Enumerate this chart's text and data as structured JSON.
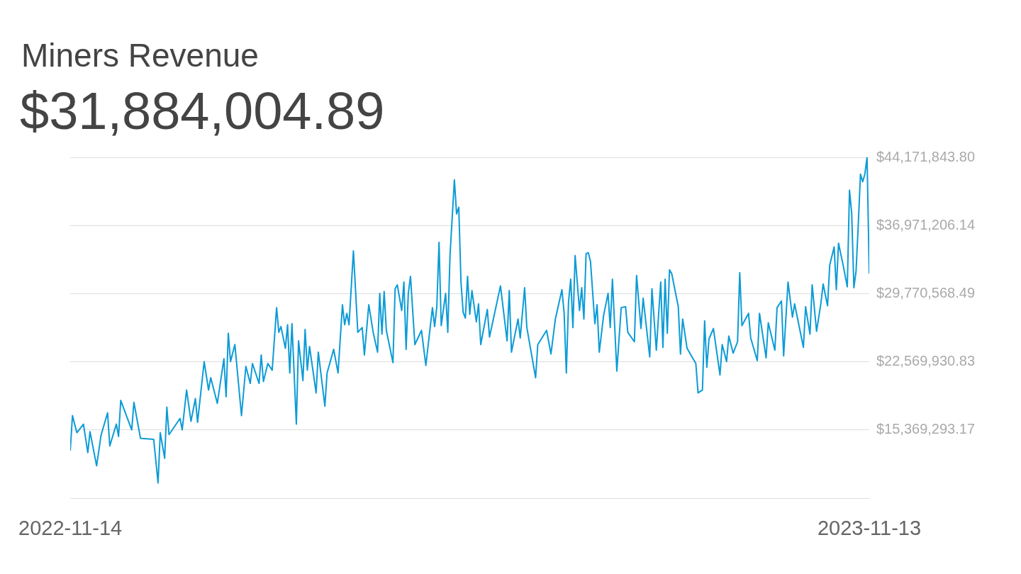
{
  "chart_data": {
    "type": "line",
    "title": "Miners Revenue",
    "subtitle": "$31,884,004.89",
    "xlim": [
      "2022-11-14",
      "2023-11-13"
    ],
    "xticks": [
      "2022-11-14",
      "2023-11-13"
    ],
    "ylim": [
      8168655.51,
      44171843.8
    ],
    "yticks": [
      {
        "value": 8168655.51,
        "label": null
      },
      {
        "value": 15369293.17,
        "label": "$15,369,293.17"
      },
      {
        "value": 22569930.83,
        "label": "$22,569,930.83"
      },
      {
        "value": 29770568.49,
        "label": "$29,770,568.49"
      },
      {
        "value": 36971206.14,
        "label": "$36,971,206.14"
      },
      {
        "value": 44171843.8,
        "label": "$44,171,843.80"
      }
    ],
    "grid": "y",
    "marker": "none",
    "line_style": "solid",
    "series": [
      {
        "color": "#0c9bd6",
        "x": [
          "2022-11-14",
          "2022-11-15",
          "2022-11-17",
          "2022-11-20",
          "2022-11-22",
          "2022-11-23",
          "2022-11-26",
          "2022-11-28",
          "2022-12-01",
          "2022-12-02",
          "2022-12-05",
          "2022-12-06",
          "2022-12-07",
          "2022-12-12",
          "2022-12-13",
          "2022-12-16",
          "2022-12-22",
          "2022-12-24",
          "2022-12-25",
          "2022-12-27",
          "2022-12-28",
          "2022-12-29",
          "2023-01-03",
          "2023-01-04",
          "2023-01-06",
          "2023-01-08",
          "2023-01-10",
          "2023-01-11",
          "2023-01-14",
          "2023-01-16",
          "2023-01-17",
          "2023-01-20",
          "2023-01-23",
          "2023-01-24",
          "2023-01-25",
          "2023-01-26",
          "2023-01-28",
          "2023-01-31",
          "2023-02-02",
          "2023-02-04",
          "2023-02-05",
          "2023-02-08",
          "2023-02-09",
          "2023-02-10",
          "2023-02-12",
          "2023-02-14",
          "2023-02-16",
          "2023-02-17",
          "2023-02-18",
          "2023-02-20",
          "2023-02-21",
          "2023-02-22",
          "2023-02-23",
          "2023-02-25",
          "2023-02-26",
          "2023-02-28",
          "2023-03-01",
          "2023-03-02",
          "2023-03-03",
          "2023-03-06",
          "2023-03-07",
          "2023-03-10",
          "2023-03-11",
          "2023-03-14",
          "2023-03-16",
          "2023-03-18",
          "2023-03-19",
          "2023-03-20",
          "2023-03-21",
          "2023-03-23",
          "2023-03-25",
          "2023-03-27",
          "2023-03-28",
          "2023-03-30",
          "2023-04-01",
          "2023-04-03",
          "2023-04-04",
          "2023-04-05",
          "2023-04-06",
          "2023-04-07",
          "2023-04-10",
          "2023-04-11",
          "2023-04-12",
          "2023-04-14",
          "2023-04-15",
          "2023-04-16",
          "2023-04-17",
          "2023-04-18",
          "2023-04-20",
          "2023-04-23",
          "2023-04-25",
          "2023-04-28",
          "2023-04-29",
          "2023-04-30",
          "2023-05-01",
          "2023-05-02",
          "2023-05-04",
          "2023-05-05",
          "2023-05-06",
          "2023-05-08",
          "2023-05-09",
          "2023-05-10",
          "2023-05-11",
          "2023-05-12",
          "2023-05-13",
          "2023-05-14",
          "2023-05-15",
          "2023-05-16",
          "2023-05-18",
          "2023-05-19",
          "2023-05-20",
          "2023-05-23",
          "2023-05-24",
          "2023-05-29",
          "2023-06-01",
          "2023-06-02",
          "2023-06-03",
          "2023-06-06",
          "2023-06-07",
          "2023-06-09",
          "2023-06-10",
          "2023-06-14",
          "2023-06-15",
          "2023-06-19",
          "2023-06-21",
          "2023-06-23",
          "2023-06-26",
          "2023-06-27",
          "2023-06-28",
          "2023-06-29",
          "2023-06-30",
          "2023-07-01",
          "2023-07-02",
          "2023-07-04",
          "2023-07-05",
          "2023-07-06",
          "2023-07-07",
          "2023-07-08",
          "2023-07-09",
          "2023-07-11",
          "2023-07-12",
          "2023-07-13",
          "2023-07-15",
          "2023-07-17",
          "2023-07-18",
          "2023-07-19",
          "2023-07-21",
          "2023-07-23",
          "2023-07-25",
          "2023-07-26",
          "2023-07-29",
          "2023-07-30",
          "2023-08-01",
          "2023-08-02",
          "2023-08-05",
          "2023-08-06",
          "2023-08-08",
          "2023-08-10",
          "2023-08-11",
          "2023-08-12",
          "2023-08-13",
          "2023-08-14",
          "2023-08-15",
          "2023-08-18",
          "2023-08-19",
          "2023-08-20",
          "2023-08-22",
          "2023-08-26",
          "2023-08-27",
          "2023-08-29",
          "2023-08-30",
          "2023-08-31",
          "2023-09-01",
          "2023-09-03",
          "2023-09-06",
          "2023-09-07",
          "2023-09-09",
          "2023-09-10",
          "2023-09-12",
          "2023-09-14",
          "2023-09-15",
          "2023-09-16",
          "2023-09-19",
          "2023-09-20",
          "2023-09-23",
          "2023-09-24",
          "2023-09-27",
          "2023-09-28",
          "2023-10-01",
          "2023-10-02",
          "2023-10-04",
          "2023-10-05",
          "2023-10-07",
          "2023-10-09",
          "2023-10-10",
          "2023-10-14",
          "2023-10-15",
          "2023-10-17",
          "2023-10-18",
          "2023-10-20",
          "2023-10-22",
          "2023-10-23",
          "2023-10-25",
          "2023-10-26",
          "2023-10-28",
          "2023-10-29",
          "2023-10-30",
          "2023-11-01",
          "2023-11-03",
          "2023-11-04",
          "2023-11-05",
          "2023-11-06",
          "2023-11-07",
          "2023-11-08",
          "2023-11-09",
          "2023-11-10",
          "2023-11-11",
          "2023-11-12",
          "2023-11-13"
        ],
        "values": [
          13200000,
          16900000,
          15100000,
          16000000,
          13000000,
          15200000,
          11600000,
          14800000,
          17200000,
          13700000,
          16000000,
          14700000,
          18500000,
          15400000,
          18300000,
          14500000,
          14400000,
          9800000,
          15100000,
          12400000,
          17800000,
          14900000,
          16600000,
          15400000,
          19600000,
          16300000,
          18700000,
          16200000,
          22600000,
          19600000,
          20900000,
          18200000,
          22900000,
          18900000,
          25600000,
          22600000,
          24400000,
          16900000,
          22100000,
          20300000,
          22400000,
          20300000,
          23300000,
          20500000,
          22400000,
          21700000,
          28300000,
          25700000,
          26300000,
          24000000,
          26500000,
          21400000,
          26600000,
          16000000,
          24800000,
          20600000,
          26000000,
          21700000,
          24200000,
          19300000,
          23600000,
          17900000,
          21400000,
          23900000,
          21400000,
          28600000,
          26500000,
          27700000,
          26500000,
          34300000,
          25700000,
          26200000,
          23300000,
          28600000,
          25700000,
          23600000,
          29800000,
          25500000,
          30000000,
          25900000,
          22500000,
          30300000,
          30700000,
          28000000,
          31000000,
          23900000,
          29800000,
          31600000,
          24400000,
          25900000,
          22200000,
          28300000,
          26300000,
          28400000,
          35200000,
          26400000,
          29800000,
          25700000,
          33800000,
          41800000,
          38200000,
          38900000,
          31000000,
          27800000,
          27200000,
          31600000,
          27600000,
          30100000,
          26800000,
          28700000,
          24400000,
          28100000,
          25200000,
          30600000,
          24800000,
          30100000,
          23600000,
          27100000,
          25100000,
          30400000,
          26200000,
          20900000,
          24400000,
          25900000,
          23400000,
          27100000,
          30200000,
          27700000,
          21400000,
          28900000,
          31300000,
          26200000,
          33800000,
          28000000,
          30400000,
          27100000,
          34000000,
          34100000,
          33200000,
          26600000,
          28600000,
          23600000,
          27500000,
          29800000,
          26200000,
          31300000,
          21600000,
          28300000,
          28400000,
          25700000,
          24700000,
          31700000,
          26100000,
          29300000,
          23100000,
          30300000,
          23800000,
          31000000,
          24100000,
          31300000,
          25600000,
          32300000,
          31900000,
          28400000,
          23400000,
          27100000,
          24000000,
          22400000,
          19300000,
          19600000,
          26900000,
          22000000,
          25000000,
          26100000,
          21200000,
          24400000,
          22600000,
          25300000,
          23500000,
          24700000,
          32000000,
          26400000,
          27700000,
          25100000,
          22700000,
          27700000,
          23000000,
          26700000,
          23800000,
          28300000,
          29000000,
          23200000,
          31000000,
          27300000,
          28700000,
          24100000,
          28400000,
          25500000,
          30700000,
          25800000,
          28800000,
          30800000,
          28500000,
          32800000,
          34700000,
          30200000,
          35100000,
          32900000,
          30500000,
          40700000,
          38300000,
          30400000,
          32200000,
          37100000,
          42400000,
          41600000,
          42400000,
          44170000,
          31884004.89
        ]
      }
    ]
  }
}
